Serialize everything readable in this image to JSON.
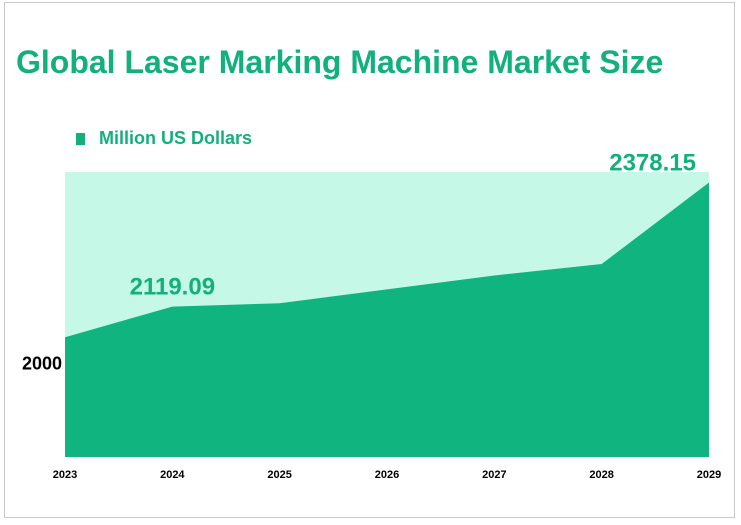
{
  "colors": {
    "accent": "#12b07d",
    "area_fill": "#10b47e",
    "plot_background": "#c6f8e7"
  },
  "chart_data": {
    "type": "area",
    "title": "Global Laser Marking Machine Market Size",
    "x": [
      "2023",
      "2024",
      "2025",
      "2026",
      "2027",
      "2028",
      "2029"
    ],
    "series": [
      {
        "name": "Million US Dollars",
        "values": [
          2055,
          2119.09,
          2126,
          2155,
          2184,
          2208,
          2378.15
        ]
      }
    ],
    "data_labels": [
      {
        "x": "2024",
        "text": "2119.09"
      },
      {
        "x": "2029",
        "text": "2378.15"
      }
    ],
    "y_ticks": [
      {
        "value": 2000,
        "label": "2000"
      }
    ],
    "ylim": [
      1805,
      2400
    ],
    "legend": "top-left",
    "grid": false
  }
}
